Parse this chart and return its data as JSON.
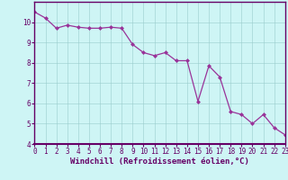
{
  "x": [
    0,
    1,
    2,
    3,
    4,
    5,
    6,
    7,
    8,
    9,
    10,
    11,
    12,
    13,
    14,
    15,
    16,
    17,
    18,
    19,
    20,
    21,
    22,
    23
  ],
  "y": [
    10.5,
    10.2,
    9.7,
    9.85,
    9.75,
    9.7,
    9.7,
    9.75,
    9.7,
    8.9,
    8.5,
    8.35,
    8.5,
    8.1,
    8.1,
    6.1,
    7.85,
    7.3,
    5.6,
    5.45,
    5.0,
    5.45,
    4.8,
    4.45
  ],
  "line_color": "#993399",
  "marker_color": "#993399",
  "bg_color": "#cef5f5",
  "grid_color": "#99cccc",
  "xlabel": "Windchill (Refroidissement éolien,°C)",
  "xlim": [
    0,
    23
  ],
  "ylim": [
    4,
    11
  ],
  "yticks": [
    4,
    5,
    6,
    7,
    8,
    9,
    10
  ],
  "xticks": [
    0,
    1,
    2,
    3,
    4,
    5,
    6,
    7,
    8,
    9,
    10,
    11,
    12,
    13,
    14,
    15,
    16,
    17,
    18,
    19,
    20,
    21,
    22,
    23
  ],
  "tick_label_fontsize": 5.5,
  "xlabel_fontsize": 6.5,
  "axis_color": "#660066",
  "spine_color": "#660066",
  "axis_bg_color": "#660066"
}
